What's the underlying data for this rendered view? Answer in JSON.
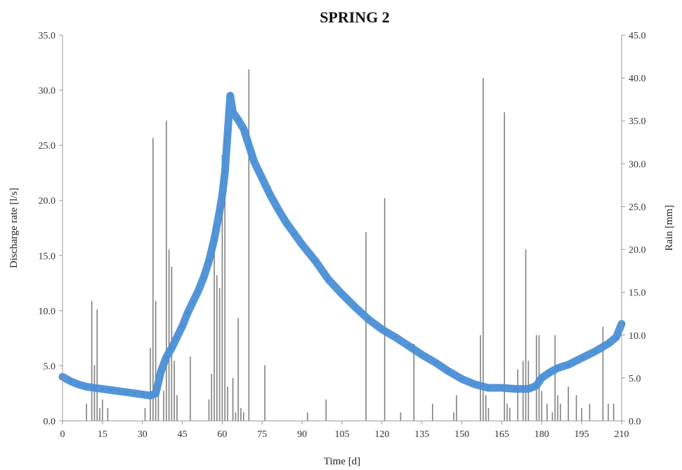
{
  "chart_data": {
    "type": "line",
    "title": "SPRING 2",
    "xlabel": "Time  [d]",
    "ylabel": "Discharge  rate  [l/s]",
    "y2label": "Rain  [mm]",
    "xlim": [
      0,
      210
    ],
    "ylim": [
      0,
      35
    ],
    "y2lim": [
      0,
      45
    ],
    "x_ticks": [
      0,
      15,
      30,
      45,
      60,
      75,
      90,
      105,
      120,
      135,
      150,
      165,
      180,
      195,
      210
    ],
    "y_ticks": [
      "0.0",
      "5.0",
      "10.0",
      "15.0",
      "20.0",
      "25.0",
      "30.0",
      "35.0"
    ],
    "y2_ticks": [
      "0.0",
      "5.0",
      "10.0",
      "15.0",
      "20.0",
      "25.0",
      "30.0",
      "35.0",
      "40.0",
      "45.0"
    ],
    "grid": false,
    "series": [
      {
        "axis": "left",
        "color": "#4a8fd6",
        "x": [
          0,
          3,
          6,
          9,
          12,
          15,
          18,
          21,
          24,
          27,
          30,
          33,
          35,
          37,
          39,
          41,
          43,
          45,
          47,
          49,
          51,
          53,
          55,
          57,
          59,
          60,
          61,
          62,
          63,
          64,
          66,
          68,
          70,
          72,
          75,
          78,
          81,
          84,
          87,
          90,
          95,
          100,
          105,
          110,
          115,
          120,
          125,
          130,
          135,
          140,
          145,
          150,
          155,
          160,
          165,
          170,
          175,
          178,
          180,
          183,
          186,
          190,
          195,
          200,
          205,
          208,
          210
        ],
        "y": [
          4.0,
          3.6,
          3.3,
          3.1,
          3.0,
          2.9,
          2.8,
          2.7,
          2.6,
          2.5,
          2.4,
          2.3,
          2.5,
          4.5,
          5.8,
          6.6,
          7.6,
          8.6,
          9.8,
          10.8,
          11.8,
          13.0,
          14.5,
          16.5,
          19.0,
          20.5,
          22.5,
          26.0,
          29.5,
          28.0,
          27.3,
          26.5,
          25.0,
          23.5,
          22.0,
          20.5,
          19.2,
          18.0,
          17.0,
          16.0,
          14.5,
          12.8,
          11.5,
          10.3,
          9.2,
          8.3,
          7.6,
          6.8,
          6.0,
          5.3,
          4.5,
          3.8,
          3.3,
          3.0,
          3.0,
          2.9,
          2.9,
          3.2,
          3.9,
          4.4,
          4.8,
          5.1,
          5.7,
          6.3,
          7.0,
          7.6,
          8.8
        ]
      },
      {
        "axis": "right",
        "type": "bar",
        "color": "#808080",
        "x": [
          9,
          11,
          12,
          13,
          14,
          15,
          17,
          31,
          33,
          34,
          35,
          36,
          38,
          39,
          40,
          41,
          42,
          43,
          48,
          55,
          56,
          57,
          58,
          59,
          60,
          61,
          62,
          64,
          65,
          66,
          67,
          68,
          70,
          76,
          92,
          99,
          114,
          121,
          127,
          132,
          139,
          147,
          148,
          157,
          158,
          159,
          160,
          166,
          167,
          168,
          171,
          173,
          174,
          175,
          178,
          179,
          180,
          182,
          184,
          185,
          186,
          187,
          190,
          193,
          195,
          198,
          203,
          205,
          207
        ],
        "y": [
          2.0,
          14.0,
          6.5,
          13.0,
          1.5,
          2.5,
          1.5,
          1.5,
          8.5,
          33.0,
          14.0,
          4.5,
          3.5,
          35.0,
          20.0,
          18.0,
          7.0,
          3.0,
          7.5,
          2.5,
          5.5,
          23.0,
          17.0,
          15.5,
          31.0,
          33.0,
          4.0,
          5.0,
          1.0,
          12.0,
          1.5,
          1.0,
          41.0,
          6.5,
          1.0,
          2.5,
          22.0,
          26.0,
          1.0,
          9.0,
          2.0,
          1.0,
          3.0,
          10.0,
          40.0,
          3.0,
          1.5,
          36.0,
          2.0,
          1.5,
          6.0,
          7.0,
          20.0,
          7.0,
          10.0,
          10.0,
          3.5,
          2.0,
          1.0,
          10.0,
          3.0,
          2.0,
          4.0,
          3.0,
          1.5,
          2.0,
          11.0,
          2.0,
          2.0
        ]
      }
    ]
  }
}
